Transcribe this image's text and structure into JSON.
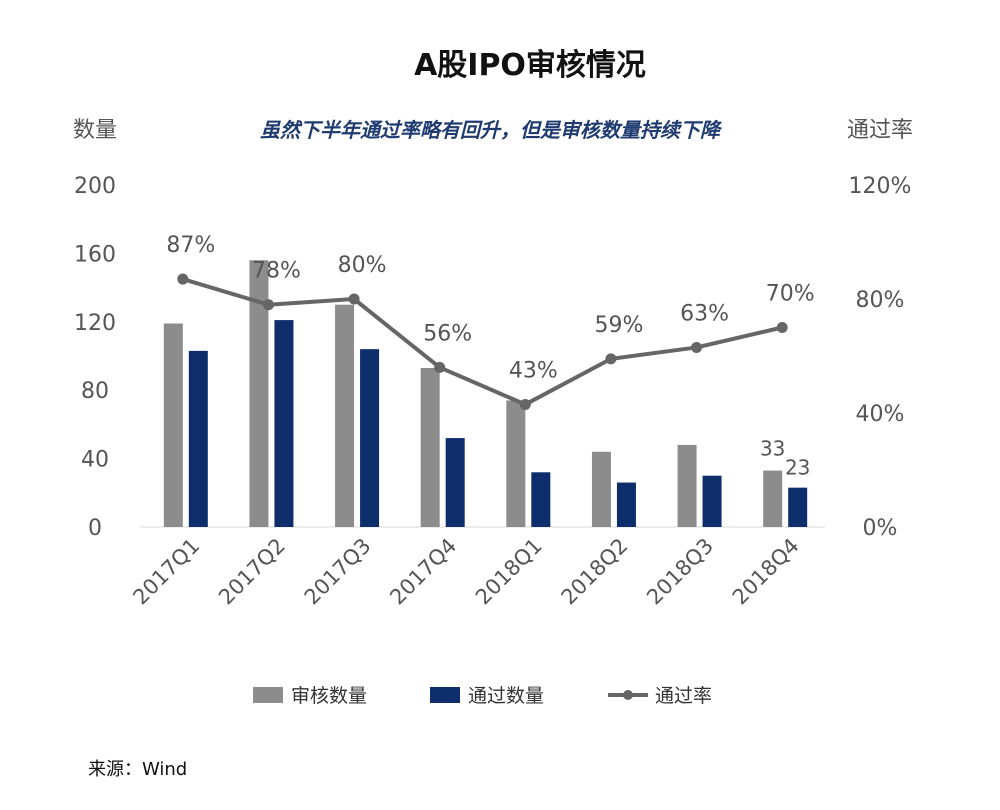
{
  "chart_data": {
    "type": "bar",
    "title": "A股IPO审核情况",
    "subtitle": "虽然下半年通过率略有回升，但是审核数量持续下降",
    "ylabel_left": "数量",
    "ylabel_right": "通过率",
    "ylim_left": [
      0,
      200
    ],
    "yticks_left": [
      "0",
      "40",
      "80",
      "120",
      "160",
      "200"
    ],
    "ylim_right": [
      0,
      120
    ],
    "yticks_right": [
      "0%",
      "40%",
      "80%",
      "120%"
    ],
    "categories": [
      "2017Q1",
      "2017Q2",
      "2017Q3",
      "2017Q4",
      "2018Q1",
      "2018Q2",
      "2018Q3",
      "2018Q4"
    ],
    "series": [
      {
        "name": "审核数量",
        "type": "bar",
        "axis": "left",
        "color": "#8c8c8c",
        "values": [
          119,
          156,
          130,
          93,
          74,
          44,
          48,
          33
        ]
      },
      {
        "name": "通过数量",
        "type": "bar",
        "axis": "left",
        "color": "#0d2d6b",
        "values": [
          103,
          121,
          104,
          52,
          32,
          26,
          30,
          23
        ]
      },
      {
        "name": "通过率",
        "type": "line",
        "axis": "right",
        "color": "#666666",
        "values": [
          87,
          78,
          80,
          56,
          43,
          59,
          63,
          70
        ],
        "labels": [
          "87%",
          "78%",
          "80%",
          "56%",
          "43%",
          "59%",
          "63%",
          "70%"
        ]
      }
    ],
    "value_labels": [
      {
        "series": "审核数量",
        "index": 7,
        "text": "33"
      },
      {
        "series": "通过数量",
        "index": 7,
        "text": "23"
      }
    ],
    "legend_position": "bottom",
    "grid": false
  },
  "source": "来源：Wind"
}
